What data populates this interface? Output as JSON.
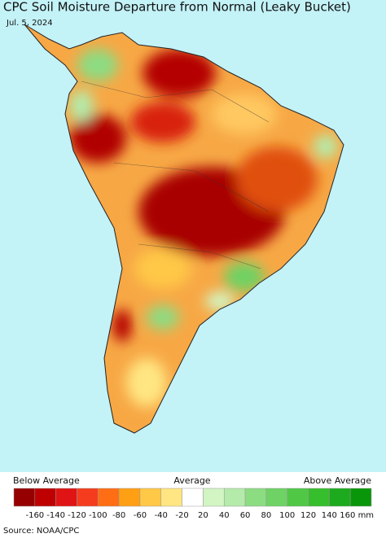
{
  "header": {
    "title": "CPC Soil Moisture Departure from Normal (Leaky Bucket)",
    "date": "Jul. 5, 2024"
  },
  "legend": {
    "below": "Below Average",
    "average": "Average",
    "above": "Above Average",
    "colors": [
      "#960000",
      "#be0000",
      "#e01414",
      "#f53c1e",
      "#ff6e14",
      "#ffa014",
      "#ffc846",
      "#ffe682",
      "#ffffff",
      "#d2f5c3",
      "#b4ebaa",
      "#8cdc82",
      "#6ed264",
      "#50c846",
      "#37be2d",
      "#1eaa1e",
      "#0a960a"
    ],
    "ticks": [
      -160,
      -140,
      -120,
      -100,
      -80,
      -60,
      -40,
      -20,
      20,
      40,
      60,
      80,
      100,
      120,
      140,
      {
        "value": 160,
        "label": "160 mm"
      }
    ]
  },
  "source": "Source: NOAA/CPC"
}
